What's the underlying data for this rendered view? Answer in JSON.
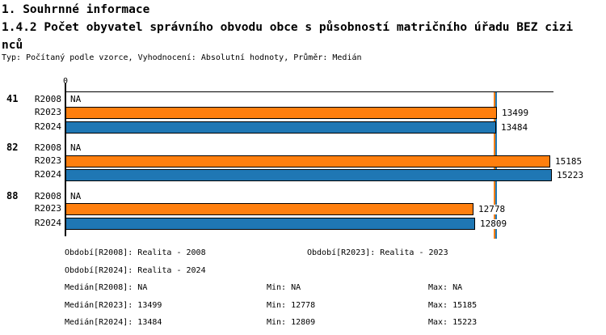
{
  "header": {
    "title1": "1. Souhrnné informace",
    "title2": "1.4.2 Počet obyvatel správního obvodu obce s působností matričního úřadu BEZ cizinců",
    "meta": "Typ: Počítaný podle vzorce, Vyhodnocení: Absolutní hodnoty, Průměr: Medián"
  },
  "chart_data": {
    "type": "bar",
    "orientation": "horizontal",
    "title": "1.4.2 Počet obyvatel správního obvodu obce s působností matričního úřadu BEZ cizinců",
    "origin_label": "0",
    "na_label": "NA",
    "axis_color": "#000000",
    "categories": [
      "41",
      "82",
      "88"
    ],
    "series": [
      {
        "name": "R2008",
        "color": "#ffffff",
        "values": [
          null,
          null,
          null
        ]
      },
      {
        "name": "R2023",
        "color": "#ff7f0e",
        "values": [
          13499,
          15185,
          12778
        ]
      },
      {
        "name": "R2024",
        "color": "#1f77b4",
        "values": [
          13484,
          15223,
          12809
        ]
      }
    ],
    "median_lines": [
      {
        "series": "R2023",
        "value": 13499,
        "color": "#ff7f0e"
      },
      {
        "series": "R2024",
        "value": 13484,
        "color": "#1f77b4"
      }
    ],
    "xlim": [
      0,
      15223
    ],
    "grid": false,
    "legend_position": "none"
  },
  "footer": {
    "period_r2008": "Období[R2008]: Realita - 2008",
    "period_r2023": "Období[R2023]: Realita - 2023",
    "period_r2024": "Období[R2024]: Realita - 2024",
    "median_r2008": "Medián[R2008]: NA",
    "min_r2008": "Min: NA",
    "max_r2008": "Max: NA",
    "median_r2023": "Medián[R2023]: 13499",
    "min_r2023": "Min: 12778",
    "max_r2023": "Max: 15185",
    "median_r2024": "Medián[R2024]: 13484",
    "min_r2024": "Min: 12809",
    "max_r2024": "Max: 15223"
  }
}
